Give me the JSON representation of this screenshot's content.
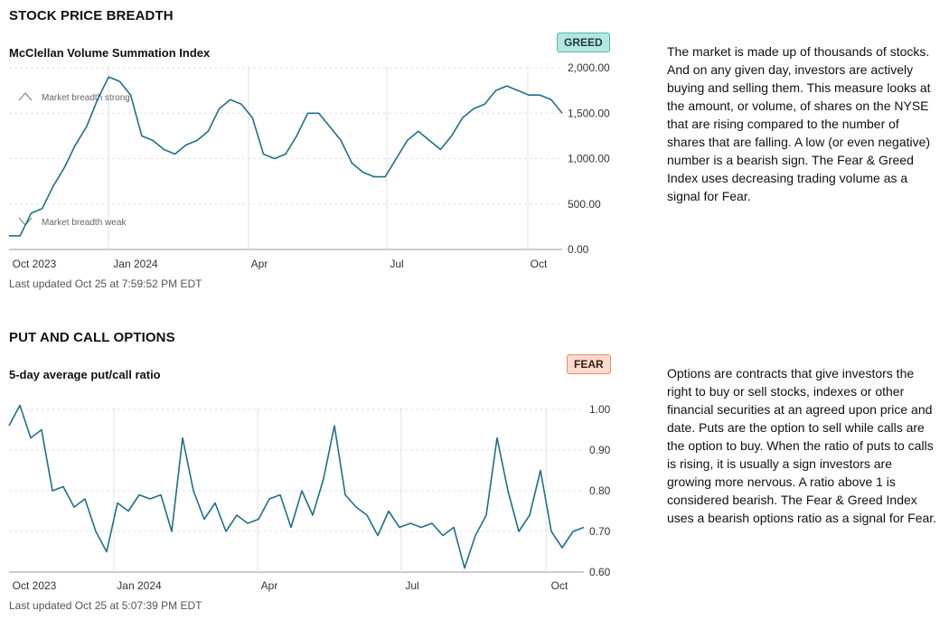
{
  "sections": [
    {
      "title": "STOCK PRICE BREADTH",
      "chart_title": "McClellan Volume Summation Index",
      "badge": "GREED",
      "description": "The market is made up of thousands of stocks. And on any given day, investors are actively buying and selling them. This measure looks at the amount, or volume, of shares on the NYSE that are rising compared to the number of shares that are falling. A low (or even negative) number is a bearish sign. The Fear & Greed Index uses decreasing trading volume as a signal for Fear.",
      "last_updated": "Last updated Oct 25 at 7:59:52 PM EDT",
      "annotations": {
        "strong": "Market breadth strong",
        "weak": "Market breadth weak"
      }
    },
    {
      "title": "PUT AND CALL OPTIONS",
      "chart_title": "5-day average put/call ratio",
      "badge": "FEAR",
      "description": "Options are contracts that give investors the right to buy or sell stocks, indexes or other financial securities at an agreed upon price and date. Puts are the option to sell while calls are the option to buy. When the ratio of puts to calls is rising, it is usually a sign investors are growing more nervous. A ratio above 1 is considered bearish. The Fear & Greed Index uses a bearish options ratio as a signal for Fear.",
      "last_updated": "Last updated Oct 25 at 5:07:39 PM EDT"
    }
  ],
  "colors": {
    "line": "#1f6f8b",
    "grid": "#e2e2e2",
    "greed": "#b6e6e1",
    "fear": "#fbd9cb"
  },
  "chart_data": [
    {
      "type": "line",
      "title": "McClellan Volume Summation Index",
      "x_ticks": [
        "Oct 2023",
        "Jan 2024",
        "Apr",
        "Jul",
        "Oct"
      ],
      "y_ticks": [
        "2,000.00",
        "1,500.00",
        "1,000.00",
        "500.00",
        "0.00"
      ],
      "ylim": [
        0,
        2000
      ],
      "x_range": [
        0,
        52
      ],
      "values": [
        150,
        150,
        400,
        450,
        700,
        900,
        1150,
        1350,
        1650,
        1900,
        1850,
        1700,
        1250,
        1200,
        1100,
        1050,
        1150,
        1200,
        1300,
        1550,
        1650,
        1600,
        1450,
        1050,
        1000,
        1050,
        1250,
        1500,
        1500,
        1350,
        1200,
        950,
        850,
        800,
        800,
        1000,
        1200,
        1300,
        1200,
        1100,
        1250,
        1450,
        1550,
        1600,
        1750,
        1800,
        1750,
        1700,
        1700,
        1650,
        1500
      ],
      "annotations": [
        "Market breadth strong",
        "Market breadth weak"
      ]
    },
    {
      "type": "line",
      "title": "5-day average put/call ratio",
      "x_ticks": [
        "Oct 2023",
        "Jan 2024",
        "Apr",
        "Jul",
        "Oct"
      ],
      "y_ticks": [
        "1.00",
        "0.90",
        "0.80",
        "0.70",
        "0.60"
      ],
      "ylim": [
        0.6,
        1.0
      ],
      "x_range": [
        0,
        51
      ],
      "values": [
        0.96,
        1.01,
        0.93,
        0.95,
        0.8,
        0.81,
        0.76,
        0.78,
        0.7,
        0.65,
        0.77,
        0.75,
        0.79,
        0.78,
        0.79,
        0.7,
        0.93,
        0.8,
        0.73,
        0.77,
        0.7,
        0.74,
        0.72,
        0.73,
        0.78,
        0.79,
        0.71,
        0.8,
        0.74,
        0.83,
        0.96,
        0.79,
        0.76,
        0.74,
        0.69,
        0.75,
        0.71,
        0.72,
        0.71,
        0.72,
        0.69,
        0.71,
        0.61,
        0.69,
        0.74,
        0.93,
        0.8,
        0.7,
        0.74,
        0.85,
        0.7,
        0.66,
        0.7,
        0.71
      ]
    }
  ]
}
